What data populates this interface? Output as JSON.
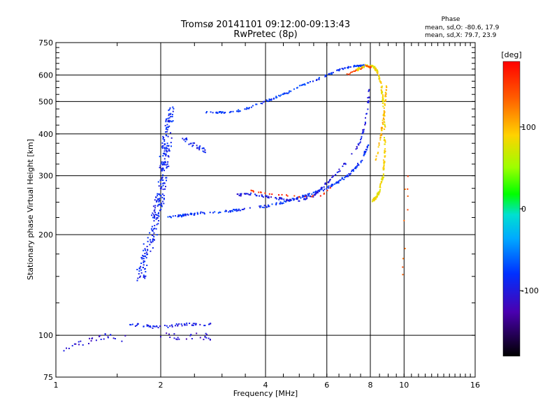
{
  "chart_data": {
    "type": "scatter",
    "title": "Tromsø 20141101 09:12:00-09:13:43",
    "subtitle": "RwPretec (8p)",
    "xlabel": "Frequency [MHz]",
    "ylabel": "Stationary phase Virtual Height [km]",
    "x_scale": "log",
    "y_scale": "log",
    "xlim": [
      1,
      16
    ],
    "ylim": [
      75,
      750
    ],
    "x_ticks": [
      1,
      2,
      4,
      6,
      8,
      10,
      16
    ],
    "x_tick_labels": [
      "1",
      "2",
      "4",
      "6",
      "8",
      "10",
      "16"
    ],
    "y_ticks": [
      75,
      100,
      200,
      300,
      400,
      500,
      600,
      750
    ],
    "y_tick_labels": [
      "75",
      "100",
      "200",
      "300",
      "400",
      "500",
      "600",
      "750"
    ],
    "grid": true,
    "phase_info": {
      "heading": "Phase",
      "line_o": "mean, sd,O: -80.6, 17.9",
      "line_x": "mean, sd,X:  79.7, 23.9"
    },
    "colorbar": {
      "label": "[deg]",
      "range": [
        -180,
        180
      ],
      "tick_values": [
        100,
        0,
        -100
      ],
      "tick_labels": [
        "100",
        "0",
        "-100"
      ]
    },
    "series": [
      {
        "segments": [
          {
            "x": [
              1.02,
              1.1,
              1.2,
              1.3,
              1.4,
              1.5,
              1.6
            ],
            "y": [
              88,
              92,
              95,
              98,
              100,
              97,
              99
            ],
            "phase": -105,
            "jitter": 0.04,
            "count": 30
          },
          {
            "x": [
              1.6,
              1.75,
              1.9,
              2.05,
              2.2,
              2.4,
              2.6,
              2.8
            ],
            "y": [
              108,
              107,
              106,
              106,
              107,
              108,
              108,
              108
            ],
            "phase": -95,
            "jitter": 0.02,
            "count": 60
          },
          {
            "x": [
              2.0,
              2.3,
              2.6,
              2.8
            ],
            "y": [
              100,
              99,
              101,
              97
            ],
            "phase": -110,
            "jitter": 0.05,
            "count": 25
          }
        ]
      },
      {
        "segments": [
          {
            "x": [
              1.75,
              1.8,
              1.9,
              1.95,
              2.0,
              2.05,
              2.1
            ],
            "y": [
              150,
              170,
              200,
              230,
              260,
              300,
              380
            ],
            "phase": -88,
            "jitter": 0.09,
            "count": 200
          },
          {
            "x": [
              2.0,
              2.05,
              2.1,
              2.15
            ],
            "y": [
              300,
              360,
              420,
              470
            ],
            "phase": -85,
            "jitter": 0.07,
            "count": 80
          },
          {
            "x": [
              2.3,
              2.5,
              2.7
            ],
            "y": [
              390,
              370,
              355
            ],
            "phase": -92,
            "jitter": 0.03,
            "count": 30
          },
          {
            "x": [
              2.1,
              2.3,
              2.6,
              3.0,
              3.5,
              4.0,
              4.5,
              5.0,
              5.5,
              6.0,
              6.5,
              7.0,
              7.5,
              8.0
            ],
            "y": [
              225,
              228,
              232,
              234,
              238,
              243,
              250,
              258,
              266,
              275,
              288,
              305,
              330,
              380
            ],
            "phase": -82,
            "jitter": 0.015,
            "count": 220
          },
          {
            "x": [
              3.3,
              3.6,
              4.0,
              4.5,
              5.0,
              5.5,
              6.0,
              6.5,
              7.0,
              7.5,
              7.8,
              8.0
            ],
            "y": [
              262,
              265,
              260,
              255,
              252,
              262,
              285,
              310,
              340,
              380,
              450,
              580
            ],
            "phase": -98,
            "jitter": 0.015,
            "count": 150
          },
          {
            "x": [
              2.7,
              3.0,
              3.4,
              3.8,
              4.2,
              4.6,
              5.0,
              5.5,
              6.0,
              6.5,
              7.0,
              7.4,
              7.7
            ],
            "y": [
              465,
              463,
              470,
              490,
              510,
              530,
              555,
              575,
              600,
              620,
              635,
              640,
              640
            ],
            "phase": -80,
            "jitter": 0.012,
            "count": 150
          },
          {
            "x": [
              3.5,
              4.2,
              5.0,
              5.8,
              6.2
            ],
            "y": [
              272,
              265,
              259,
              262,
              278
            ],
            "phase": 160,
            "jitter": 0.01,
            "count": 25
          }
        ]
      },
      {
        "segments": [
          {
            "x": [
              7.3,
              7.8,
              8.2,
              8.4,
              8.6,
              8.7,
              8.8,
              8.8,
              8.7,
              8.5,
              8.3,
              8.1
            ],
            "y": [
              620,
              640,
              635,
              610,
              560,
              500,
              420,
              350,
              300,
              270,
              258,
              252
            ],
            "phase": 85,
            "jitter": 0.015,
            "count": 220
          },
          {
            "x": [
              8.3,
              8.6,
              8.8,
              8.9
            ],
            "y": [
              330,
              400,
              480,
              560
            ],
            "phase": 100,
            "jitter": 0.012,
            "count": 60
          },
          {
            "x": [
              6.8,
              7.3,
              7.8,
              8.1
            ],
            "y": [
              600,
              620,
              640,
              630
            ],
            "phase": 150,
            "jitter": 0.01,
            "count": 20
          },
          {
            "x": [
              9.9,
              10.1,
              10.3
            ],
            "y": [
              150,
              220,
              320
            ],
            "phase": 140,
            "jitter": 0.06,
            "count": 10
          }
        ]
      }
    ]
  }
}
